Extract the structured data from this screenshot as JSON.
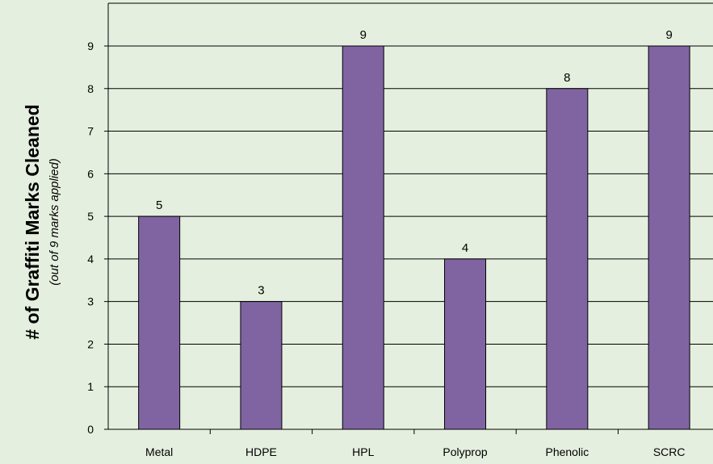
{
  "chart_data": {
    "type": "bar",
    "title": "",
    "xlabel": "",
    "ylabel": "# of Graffiti Marks Cleaned",
    "ylabel_sub": "(out of 9 marks applied)",
    "categories": [
      "Metal",
      "HDPE",
      "HPL",
      "Polyprop",
      "Phenolic",
      "SCRC"
    ],
    "values": [
      5,
      3,
      9,
      4,
      8,
      9
    ],
    "data_labels": [
      "5",
      "3",
      "9",
      "4",
      "8",
      "9"
    ],
    "ylim": [
      0,
      10
    ],
    "yticks": [
      "0",
      "1",
      "2",
      "3",
      "4",
      "5",
      "6",
      "7",
      "8",
      "9"
    ],
    "grid": true,
    "legend": "none",
    "colors": {
      "bar_fill": "#8064a2",
      "bar_stroke": "#000000",
      "background": "#e5efdf",
      "gridline": "#000000"
    }
  }
}
